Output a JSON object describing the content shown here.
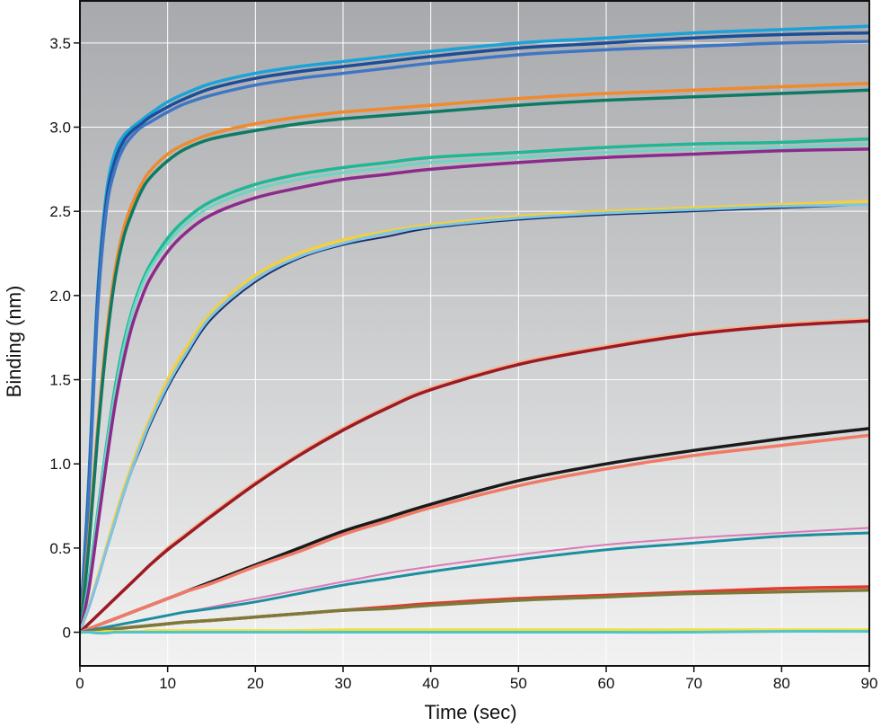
{
  "chart_data": {
    "type": "line",
    "xlabel": "Time (sec)",
    "ylabel": "Binding (nm)",
    "xlim": [
      0,
      90
    ],
    "ylim": [
      -0.2,
      3.75
    ],
    "x_ticks": [
      0,
      10,
      20,
      30,
      40,
      50,
      60,
      70,
      80,
      90
    ],
    "x_tick_labels": [
      "0",
      "10",
      "20",
      "30",
      "40",
      "50",
      "60",
      "70",
      "80",
      "90"
    ],
    "y_ticks": [
      0,
      0.5,
      1.0,
      1.5,
      2.0,
      2.5,
      3.0,
      3.5
    ],
    "y_tick_labels": [
      "0",
      "0.5",
      "1.0",
      "1.5",
      "2.0",
      "2.5",
      "3.0",
      "3.5"
    ],
    "grid": true,
    "background_gradient": [
      "#a7a9ac",
      "#f2f2f2"
    ],
    "x": [
      0,
      1,
      2,
      3,
      4,
      5,
      6,
      7,
      8,
      10,
      12,
      15,
      20,
      25,
      30,
      35,
      40,
      50,
      60,
      70,
      80,
      90
    ],
    "series": [
      {
        "color": "#1ba3d9",
        "width": 3.5,
        "values": [
          0.0,
          0.9,
          2.0,
          2.6,
          2.85,
          2.95,
          3.0,
          3.04,
          3.08,
          3.15,
          3.2,
          3.26,
          3.32,
          3.36,
          3.39,
          3.42,
          3.45,
          3.5,
          3.53,
          3.56,
          3.58,
          3.6
        ]
      },
      {
        "color": "#1c4d96",
        "width": 3.5,
        "values": [
          0.0,
          0.85,
          1.95,
          2.55,
          2.8,
          2.92,
          2.98,
          3.02,
          3.06,
          3.12,
          3.17,
          3.23,
          3.29,
          3.33,
          3.36,
          3.39,
          3.42,
          3.47,
          3.5,
          3.53,
          3.55,
          3.56
        ]
      },
      {
        "color": "#3f76c4",
        "width": 3.5,
        "values": [
          0.0,
          0.8,
          1.9,
          2.5,
          2.75,
          2.88,
          2.95,
          3.0,
          3.03,
          3.09,
          3.14,
          3.19,
          3.25,
          3.29,
          3.32,
          3.35,
          3.38,
          3.43,
          3.46,
          3.48,
          3.5,
          3.51
        ]
      },
      {
        "color": "#f08a2c",
        "width": 3.5,
        "values": [
          0.0,
          0.55,
          1.2,
          1.75,
          2.15,
          2.4,
          2.55,
          2.66,
          2.74,
          2.84,
          2.9,
          2.96,
          3.02,
          3.06,
          3.09,
          3.11,
          3.13,
          3.17,
          3.2,
          3.22,
          3.24,
          3.26
        ]
      },
      {
        "color": "#0e7a63",
        "width": 3.5,
        "values": [
          0.0,
          0.5,
          1.15,
          1.7,
          2.1,
          2.35,
          2.5,
          2.62,
          2.7,
          2.8,
          2.87,
          2.93,
          2.98,
          3.02,
          3.05,
          3.07,
          3.09,
          3.13,
          3.16,
          3.18,
          3.2,
          3.22
        ]
      },
      {
        "color": "#1fb894",
        "width": 3.5,
        "values": [
          0.0,
          0.3,
          0.7,
          1.1,
          1.45,
          1.72,
          1.92,
          2.07,
          2.18,
          2.34,
          2.45,
          2.56,
          2.66,
          2.72,
          2.76,
          2.79,
          2.82,
          2.85,
          2.88,
          2.9,
          2.91,
          2.93
        ]
      },
      {
        "color": "#6ed4c4",
        "width": 3.0,
        "values": [
          0.0,
          0.29,
          0.68,
          1.08,
          1.42,
          1.69,
          1.9,
          2.05,
          2.16,
          2.31,
          2.42,
          2.53,
          2.63,
          2.69,
          2.73,
          2.76,
          2.79,
          2.82,
          2.85,
          2.87,
          2.88,
          2.9
        ]
      },
      {
        "color": "#8c2a8c",
        "width": 3.5,
        "values": [
          0.0,
          0.25,
          0.62,
          1.0,
          1.35,
          1.62,
          1.83,
          1.98,
          2.1,
          2.26,
          2.37,
          2.48,
          2.58,
          2.64,
          2.69,
          2.72,
          2.75,
          2.79,
          2.82,
          2.84,
          2.86,
          2.87
        ]
      },
      {
        "color": "#f5cf3d",
        "width": 3.5,
        "values": [
          0.0,
          0.15,
          0.32,
          0.5,
          0.68,
          0.85,
          1.0,
          1.14,
          1.27,
          1.5,
          1.68,
          1.9,
          2.12,
          2.25,
          2.33,
          2.38,
          2.42,
          2.47,
          2.5,
          2.52,
          2.54,
          2.56
        ]
      },
      {
        "color": "#1c2f6b",
        "width": 2.0,
        "values": [
          0.0,
          0.14,
          0.3,
          0.48,
          0.65,
          0.82,
          0.97,
          1.1,
          1.23,
          1.45,
          1.63,
          1.86,
          2.08,
          2.22,
          2.3,
          2.35,
          2.4,
          2.45,
          2.48,
          2.5,
          2.52,
          2.54
        ]
      },
      {
        "color": "#7fc6e6",
        "width": 3.0,
        "values": [
          0.0,
          0.15,
          0.31,
          0.49,
          0.66,
          0.83,
          0.98,
          1.12,
          1.25,
          1.47,
          1.65,
          1.88,
          2.1,
          2.23,
          2.31,
          2.37,
          2.41,
          2.46,
          2.49,
          2.51,
          2.53,
          2.54
        ]
      },
      {
        "color": "#f5b48c",
        "width": 3.5,
        "values": [
          0.0,
          0.05,
          0.1,
          0.15,
          0.2,
          0.25,
          0.3,
          0.35,
          0.4,
          0.5,
          0.58,
          0.7,
          0.89,
          1.06,
          1.21,
          1.34,
          1.45,
          1.6,
          1.7,
          1.78,
          1.83,
          1.86
        ]
      },
      {
        "color": "#9c1a26",
        "width": 3.5,
        "values": [
          0.0,
          0.05,
          0.1,
          0.15,
          0.2,
          0.25,
          0.3,
          0.35,
          0.4,
          0.49,
          0.57,
          0.69,
          0.88,
          1.05,
          1.2,
          1.33,
          1.44,
          1.59,
          1.69,
          1.77,
          1.82,
          1.85
        ]
      },
      {
        "color": "#1a1a1a",
        "width": 3.5,
        "values": [
          0.0,
          0.02,
          0.04,
          0.06,
          0.08,
          0.1,
          0.12,
          0.14,
          0.16,
          0.2,
          0.24,
          0.3,
          0.4,
          0.5,
          0.6,
          0.68,
          0.76,
          0.9,
          1.0,
          1.08,
          1.15,
          1.21
        ]
      },
      {
        "color": "#f07a66",
        "width": 3.5,
        "values": [
          0.0,
          0.02,
          0.04,
          0.06,
          0.08,
          0.1,
          0.12,
          0.14,
          0.16,
          0.2,
          0.24,
          0.29,
          0.39,
          0.48,
          0.58,
          0.66,
          0.74,
          0.87,
          0.97,
          1.05,
          1.11,
          1.17
        ]
      },
      {
        "color": "#d97bb8",
        "width": 2.0,
        "values": [
          0.0,
          0.01,
          0.02,
          0.03,
          0.04,
          0.05,
          0.06,
          0.07,
          0.08,
          0.1,
          0.12,
          0.15,
          0.2,
          0.25,
          0.3,
          0.35,
          0.39,
          0.46,
          0.52,
          0.56,
          0.59,
          0.62
        ]
      },
      {
        "color": "#1c8ea0",
        "width": 3.0,
        "values": [
          0.0,
          0.01,
          0.02,
          0.03,
          0.04,
          0.05,
          0.06,
          0.07,
          0.08,
          0.1,
          0.12,
          0.14,
          0.18,
          0.23,
          0.28,
          0.32,
          0.36,
          0.43,
          0.49,
          0.53,
          0.57,
          0.59
        ]
      },
      {
        "color": "#e33a2e",
        "width": 3.5,
        "values": [
          0.0,
          0.005,
          0.01,
          0.015,
          0.02,
          0.025,
          0.03,
          0.035,
          0.04,
          0.05,
          0.06,
          0.07,
          0.09,
          0.11,
          0.13,
          0.15,
          0.17,
          0.2,
          0.22,
          0.24,
          0.26,
          0.27
        ]
      },
      {
        "color": "#7c7a3a",
        "width": 3.5,
        "values": [
          0.0,
          0.005,
          0.01,
          0.015,
          0.02,
          0.025,
          0.03,
          0.035,
          0.04,
          0.05,
          0.06,
          0.07,
          0.09,
          0.11,
          0.13,
          0.14,
          0.16,
          0.19,
          0.21,
          0.23,
          0.24,
          0.25
        ]
      },
      {
        "color": "#f0e03a",
        "width": 3.0,
        "values": [
          0.0,
          0.0,
          0.0,
          0.005,
          0.005,
          0.005,
          0.005,
          0.005,
          0.01,
          0.01,
          0.01,
          0.01,
          0.01,
          0.01,
          0.015,
          0.015,
          0.015,
          0.015,
          0.015,
          0.015,
          0.015,
          0.015
        ]
      },
      {
        "color": "#4fc3d0",
        "width": 3.0,
        "values": [
          0.0,
          0.0,
          -0.005,
          -0.005,
          0.0,
          0.0,
          0.0,
          0.0,
          0.0,
          0.0,
          0.0,
          0.0,
          0.0,
          0.0,
          0.0,
          0.0,
          0.0,
          0.0,
          0.0,
          0.0,
          0.005,
          0.005
        ]
      }
    ]
  }
}
